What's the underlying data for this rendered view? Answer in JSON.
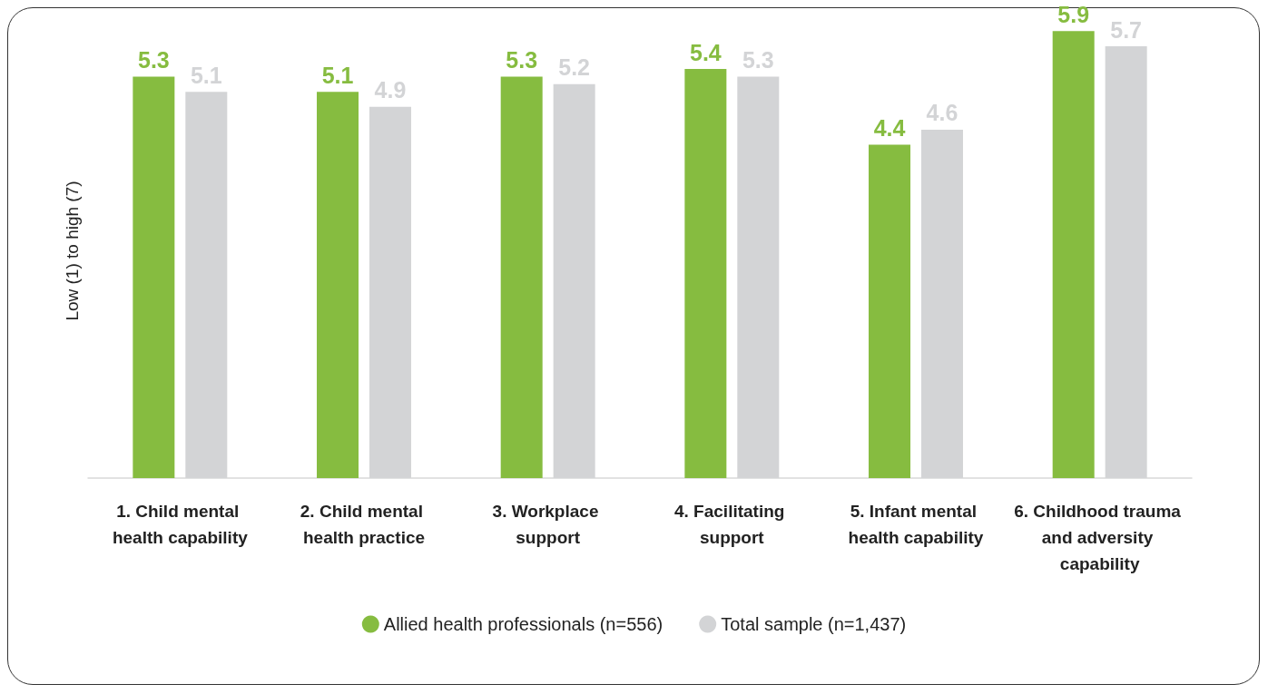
{
  "chart_data": {
    "type": "bar",
    "ylabel": "Low (1) to high (7)",
    "categories": [
      "1. Child mental health capability",
      "2. Child mental health practice",
      "3. Workplace support",
      "4. Facilitating support",
      "5. Infant mental health capability",
      "6. Childhood trauma and adversity capability"
    ],
    "series": [
      {
        "name": "Allied health professionals (n=556)",
        "color": "#86bc40",
        "values": [
          5.3,
          5.1,
          5.3,
          5.4,
          4.4,
          5.9
        ]
      },
      {
        "name": "Total sample (n=1,437)",
        "color": "#d3d4d6",
        "values": [
          5.1,
          4.9,
          5.2,
          5.3,
          4.6,
          5.7
        ]
      }
    ],
    "data_labels": true,
    "legend": "bottom",
    "grid": false
  }
}
